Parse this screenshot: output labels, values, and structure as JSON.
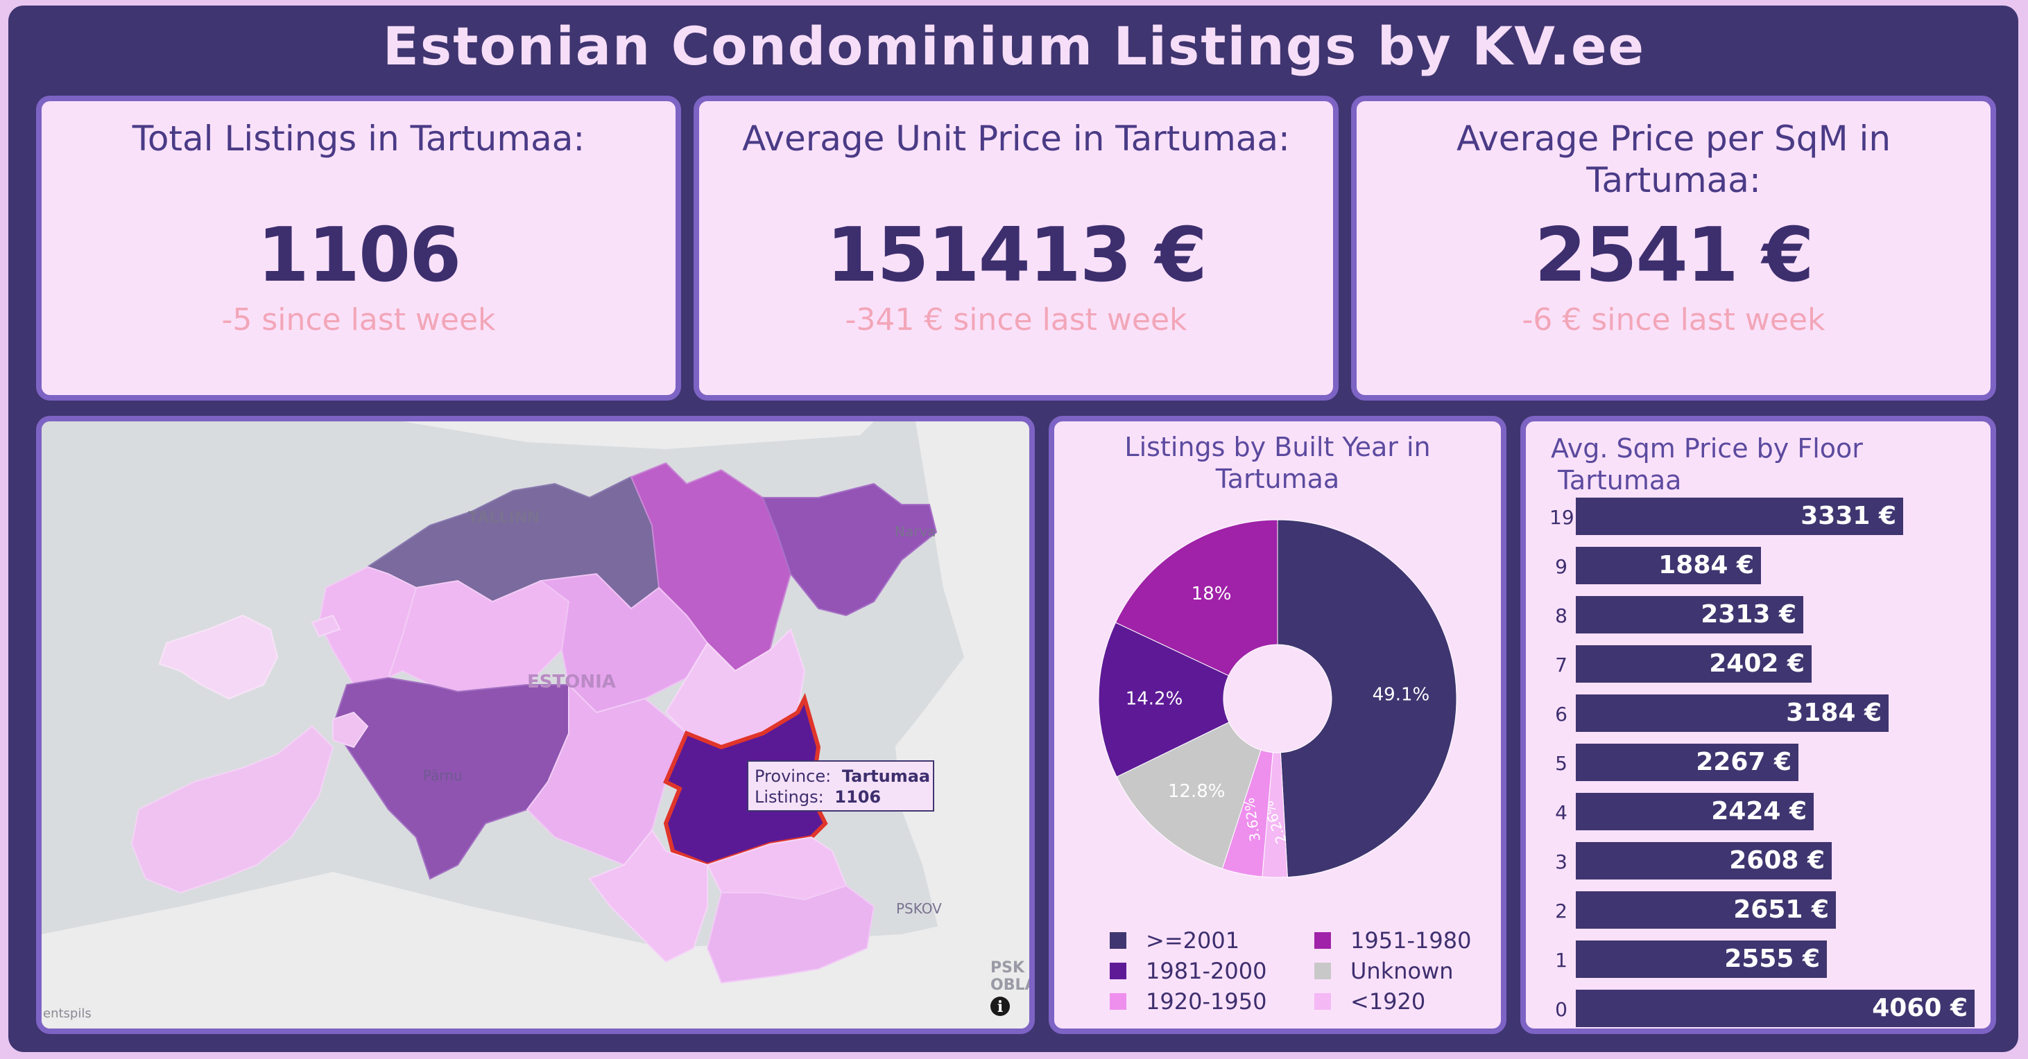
{
  "title": "Estonian Condominium Listings by KV.ee",
  "kpis": [
    {
      "label": "Total Listings in Tartumaa:",
      "value": "1106",
      "delta": "-5 since last week"
    },
    {
      "label": "Average Unit Price in Tartumaa:",
      "value": "151413 €",
      "delta": "-341 € since last week"
    },
    {
      "label": "Average Price per SqM in Tartumaa:",
      "value": "2541 €",
      "delta": "-6 € since last week"
    }
  ],
  "map": {
    "labels": {
      "tallinn": "TALLINN",
      "narva": "Narva",
      "estonia": "ESTONIA",
      "parnu": "Pärnu",
      "pskov": "PSKOV",
      "pskov2": "PSK",
      "pskov3": "OBLA",
      "ventspils": "entspils"
    },
    "tooltip": {
      "province_key": "Province:",
      "province": "Tartumaa",
      "listings_key": "Listings:",
      "listings": "1106"
    },
    "info_icon": "info-icon",
    "colors": {
      "highlight": "#5a1a96",
      "highlight_border": "#e0352a"
    }
  },
  "pie": {
    "title_line1": "Listings by Built Year in",
    "title_line2": "Tartumaa",
    "chart_data": {
      "type": "pie",
      "categories": [
        ">=2001",
        "<1920",
        "1920-1950",
        "Unknown",
        "1981-2000",
        "1951-1980"
      ],
      "values": [
        49.1,
        2.26,
        3.62,
        12.8,
        14.2,
        18
      ],
      "labels": [
        "49.1%",
        "2.26%",
        "3.62%",
        "12.8%",
        "14.2%",
        "18%"
      ],
      "colors": [
        "#3f3570",
        "#f4b8f4",
        "#ee8fee",
        "#c8c8c8",
        "#5e1a96",
        "#a022a8"
      ]
    },
    "legend": [
      {
        "label": ">=2001",
        "color": "#3f3570"
      },
      {
        "label": "1951-1980",
        "color": "#a022a8"
      },
      {
        "label": "1981-2000",
        "color": "#5e1a96"
      },
      {
        "label": "Unknown",
        "color": "#c8c8c8"
      },
      {
        "label": "1920-1950",
        "color": "#ee8fee"
      },
      {
        "label": "<1920",
        "color": "#f4b8f4"
      }
    ]
  },
  "bars": {
    "title_line1": "Avg. Sqm Price by Floor",
    "title_line2": "Tartumaa",
    "chart_data": {
      "type": "bar",
      "categories": [
        "19",
        "9",
        "8",
        "7",
        "6",
        "5",
        "4",
        "3",
        "2",
        "1",
        "0"
      ],
      "values": [
        3331,
        1884,
        2313,
        2402,
        3184,
        2267,
        2424,
        2608,
        2651,
        2555,
        4060
      ],
      "labels": [
        "3331 €",
        "1884 €",
        "2313 €",
        "2402 €",
        "3184 €",
        "2267 €",
        "2424 €",
        "2608 €",
        "2651 €",
        "2555 €",
        "4060 €"
      ],
      "xlim": [
        0,
        4060
      ]
    }
  }
}
